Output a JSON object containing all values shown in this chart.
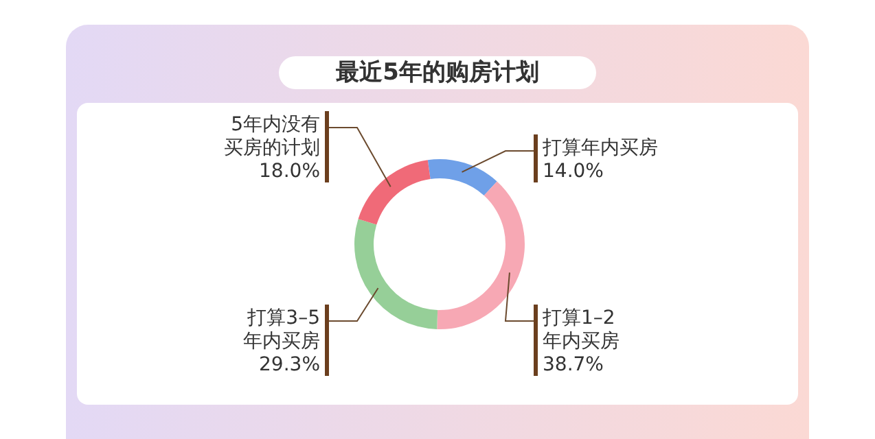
{
  "chart_data": {
    "type": "donut",
    "title": "最近5年的购房计划",
    "categories": [
      "打算年内买房",
      "打算1–2年内买房",
      "打算3–5年内买房",
      "5年内没有买房的计划"
    ],
    "values": [
      14.0,
      38.7,
      29.3,
      18.0
    ],
    "colors": [
      "#6fa0e8",
      "#f7a8b4",
      "#96cf98",
      "#f06a78"
    ],
    "value_labels": [
      "14.0%",
      "38.7%",
      "29.3%",
      "18.0%"
    ]
  }
}
